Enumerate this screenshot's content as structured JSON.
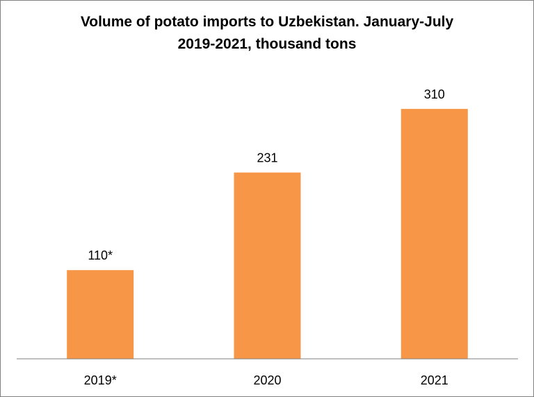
{
  "chart_data": {
    "type": "bar",
    "title_lines": [
      "Volume of potato imports to Uzbekistan. January-July",
      "2019-2021, thousand tons"
    ],
    "categories": [
      "2019*",
      "2020",
      "2021"
    ],
    "values": [
      110,
      231,
      310
    ],
    "data_labels": [
      "110*",
      "231",
      "310"
    ],
    "bar_color": "#F79646",
    "ylim": [
      0,
      340
    ],
    "grid": false,
    "legend": "none"
  }
}
